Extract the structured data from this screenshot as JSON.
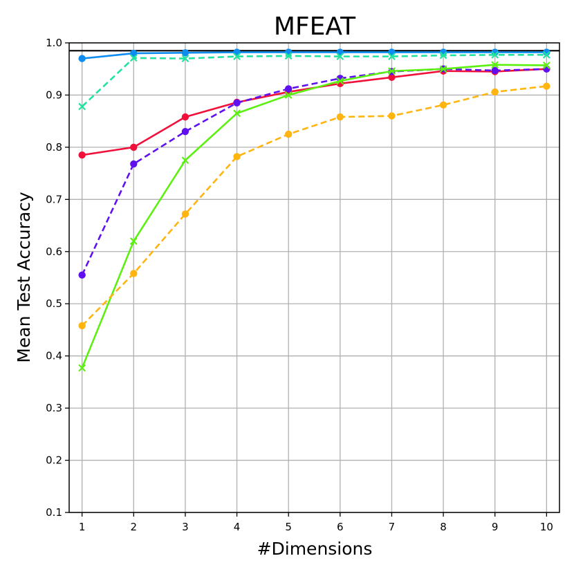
{
  "chart_data": {
    "type": "line",
    "title": "MFEAT",
    "xlabel": "#Dimensions",
    "ylabel": "Mean Test Accuracy",
    "xlim": [
      0.75,
      10.25
    ],
    "ylim": [
      0.1,
      1.0
    ],
    "grid": true,
    "x": [
      1,
      2,
      3,
      4,
      5,
      6,
      7,
      8,
      9,
      10
    ],
    "x_ticks": [
      "1",
      "2",
      "3",
      "4",
      "5",
      "6",
      "7",
      "8",
      "9",
      "10"
    ],
    "y_ticks": [
      "0.1",
      "0.2",
      "0.3",
      "0.4",
      "0.5",
      "0.6",
      "0.7",
      "0.8",
      "0.9",
      "1.0"
    ],
    "y_tick_values": [
      0.1,
      0.2,
      0.3,
      0.4,
      0.5,
      0.6,
      0.7,
      0.8,
      0.9,
      1.0
    ],
    "reference_line": {
      "y": 0.985,
      "color": "#000000"
    },
    "series": [
      {
        "name": "series-blue-solid-circle",
        "color": "#0f8cf0",
        "dash": "solid",
        "marker": "circle",
        "values": [
          0.97,
          0.98,
          0.981,
          0.982,
          0.982,
          0.982,
          0.982,
          0.982,
          0.982,
          0.982
        ]
      },
      {
        "name": "series-teal-dashed-x",
        "color": "#1ee49e",
        "dash": "dashed",
        "marker": "x",
        "values": [
          0.878,
          0.971,
          0.97,
          0.974,
          0.975,
          0.974,
          0.974,
          0.976,
          0.977,
          0.977
        ]
      },
      {
        "name": "series-red-solid-circle",
        "color": "#f0103a",
        "dash": "solid",
        "marker": "circle",
        "values": [
          0.785,
          0.8,
          0.858,
          0.886,
          0.906,
          0.922,
          0.934,
          0.946,
          0.945,
          0.95
        ]
      },
      {
        "name": "series-purple-dashed-circle",
        "color": "#6010f0",
        "dash": "dashed",
        "marker": "circle",
        "values": [
          0.555,
          0.768,
          0.83,
          0.885,
          0.912,
          0.932,
          0.945,
          0.95,
          0.947,
          0.95
        ]
      },
      {
        "name": "series-green-solid-x",
        "color": "#5cf00f",
        "dash": "solid",
        "marker": "x",
        "values": [
          0.377,
          0.62,
          0.775,
          0.865,
          0.9,
          0.927,
          0.946,
          0.95,
          0.958,
          0.957
        ]
      },
      {
        "name": "series-orange-dashed-circle",
        "color": "#ffb40f",
        "dash": "dashed",
        "marker": "circle",
        "values": [
          0.458,
          0.558,
          0.672,
          0.782,
          0.825,
          0.858,
          0.86,
          0.881,
          0.906,
          0.917
        ]
      }
    ]
  }
}
